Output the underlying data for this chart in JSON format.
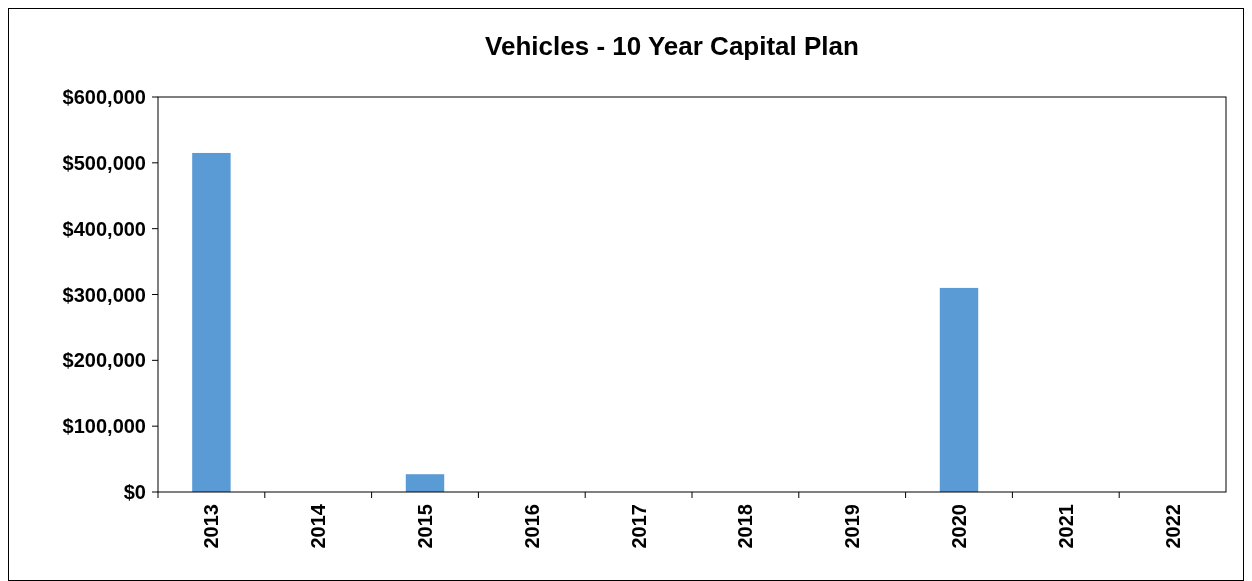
{
  "chart_data": {
    "type": "bar",
    "title": "Vehicles - 10 Year Capital Plan",
    "categories": [
      "2013",
      "2014",
      "2015",
      "2016",
      "2017",
      "2018",
      "2019",
      "2020",
      "2021",
      "2022"
    ],
    "values": [
      515000,
      0,
      27000,
      0,
      0,
      0,
      0,
      310000,
      0,
      0
    ],
    "color": "#5b9bd5",
    "ylim": [
      0,
      600000
    ],
    "yticks": [
      {
        "value": 0,
        "label": "$0"
      },
      {
        "value": 100000,
        "label": "$100,000"
      },
      {
        "value": 200000,
        "label": "$200,000"
      },
      {
        "value": 300000,
        "label": "$300,000"
      },
      {
        "value": 400000,
        "label": "$400,000"
      },
      {
        "value": 500000,
        "label": "$500,000"
      },
      {
        "value": 600000,
        "label": "$600,000"
      }
    ],
    "grid": false
  }
}
